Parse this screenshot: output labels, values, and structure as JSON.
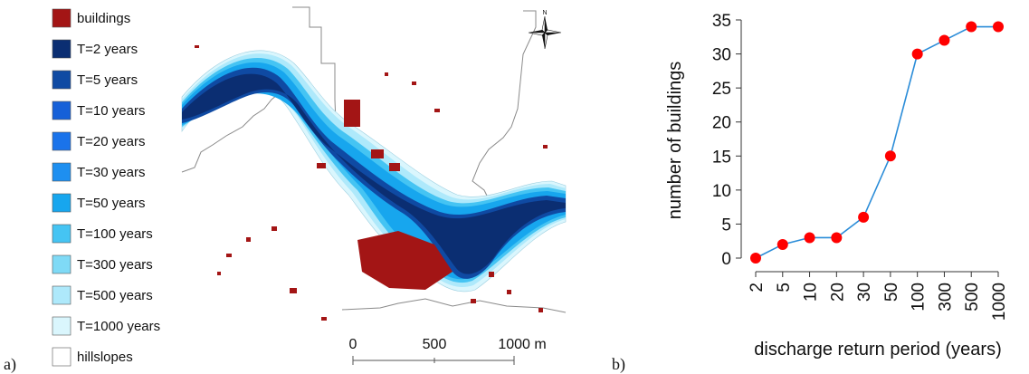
{
  "panels": {
    "a_label": "a)",
    "b_label": "b)"
  },
  "map": {
    "legend": [
      {
        "label": "buildings",
        "color": "#a31515"
      },
      {
        "label": "T=2 years",
        "color": "#0b2e72"
      },
      {
        "label": "T=5 years",
        "color": "#0f4aa3"
      },
      {
        "label": "T=10 years",
        "color": "#1660d8"
      },
      {
        "label": "T=20 years",
        "color": "#1a73ea"
      },
      {
        "label": "T=30 years",
        "color": "#1e8ff0"
      },
      {
        "label": "T=50 years",
        "color": "#17a6ee"
      },
      {
        "label": "T=100 years",
        "color": "#45c4f3"
      },
      {
        "label": "T=300 years",
        "color": "#7fdaf6"
      },
      {
        "label": "T=500 years",
        "color": "#aee9fb"
      },
      {
        "label": "T=1000 years",
        "color": "#daf6fd"
      },
      {
        "label": "hillslopes",
        "color": "#ffffff"
      }
    ],
    "scale_bar": {
      "labels": [
        "0",
        "500",
        "1000 m"
      ]
    },
    "north_arrow": {
      "label": "N",
      "icon": "north-arrow-icon"
    }
  },
  "chart_data": {
    "type": "line",
    "categories": [
      "2",
      "5",
      "10",
      "20",
      "30",
      "50",
      "100",
      "300",
      "500",
      "1000"
    ],
    "values": [
      0,
      2,
      3,
      3,
      6,
      15,
      30,
      32,
      34,
      34
    ],
    "xlabel": "discharge return period (years)",
    "ylabel": "number of buildings",
    "ylim": [
      0,
      35
    ],
    "yticks": [
      "0",
      "5",
      "10",
      "15",
      "20",
      "25",
      "30",
      "35"
    ],
    "line_color": "#2a8cd8",
    "marker_color": "#ff0000",
    "grid": false
  }
}
